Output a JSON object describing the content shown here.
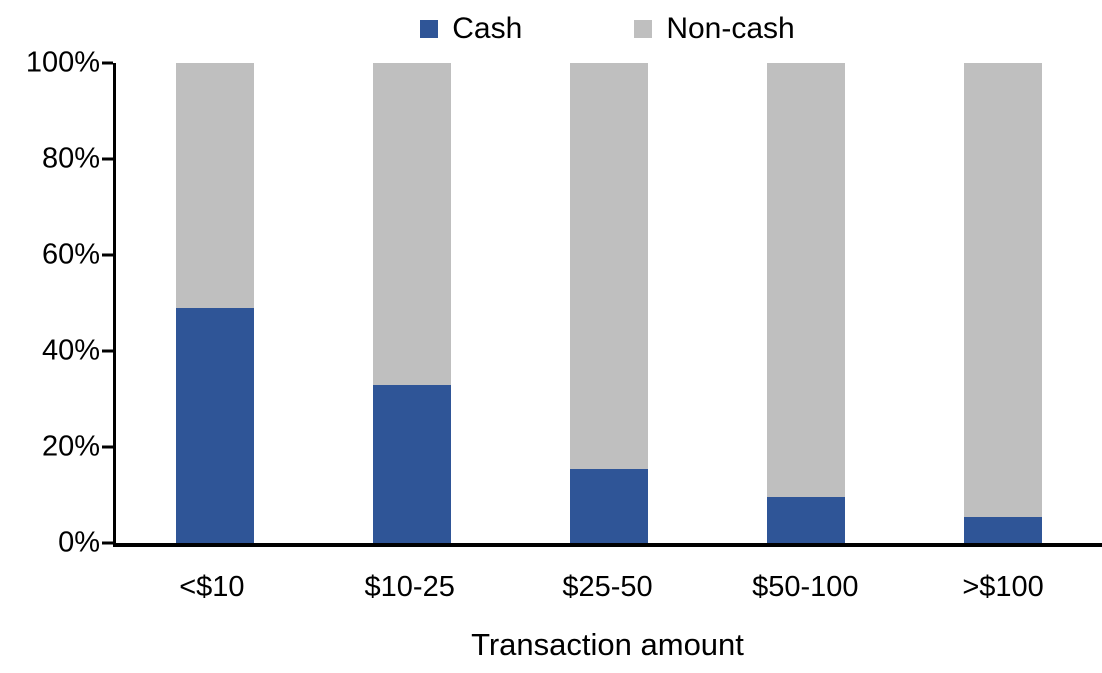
{
  "chart_data": {
    "type": "bar",
    "stacked": true,
    "percent_stacked": true,
    "title": "",
    "xlabel": "Transaction amount",
    "ylabel": "",
    "categories": [
      "<$10",
      "$10-25",
      "$25-50",
      "$50-100",
      ">$100"
    ],
    "series": [
      {
        "name": "Cash",
        "color": "#2F5597",
        "values": [
          49,
          33,
          15.5,
          9.5,
          5.5
        ]
      },
      {
        "name": "Non-cash",
        "color": "#BFBFBF",
        "values": [
          51,
          67,
          84.5,
          90.5,
          94.5
        ]
      }
    ],
    "ylim": [
      0,
      100
    ],
    "ytick_step": 20,
    "ytick_labels": [
      "0%",
      "20%",
      "40%",
      "60%",
      "80%",
      "100%"
    ],
    "legend_position": "top-center",
    "grid": false,
    "axis_color": "#000000",
    "background_color": "#FFFFFF"
  }
}
